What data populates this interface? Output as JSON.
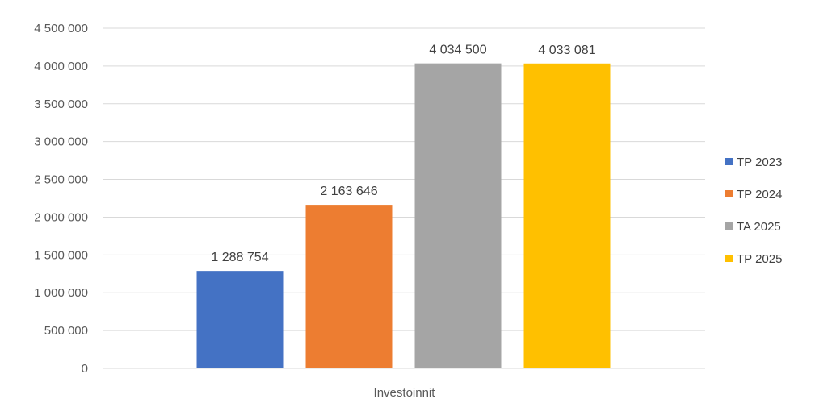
{
  "chart_data": {
    "type": "bar",
    "categories": [
      "Investoinnit"
    ],
    "series": [
      {
        "name": "TP 2023",
        "values": [
          1288754
        ],
        "label": "1 288 754",
        "color": "#4472c4"
      },
      {
        "name": "TP 2024",
        "values": [
          2163646
        ],
        "label": "2 163 646",
        "color": "#ed7d31"
      },
      {
        "name": "TA 2025",
        "values": [
          4034500
        ],
        "label": "4 034 500",
        "color": "#a5a5a5"
      },
      {
        "name": "TP 2025",
        "values": [
          4033081
        ],
        "label": "4 033 081",
        "color": "#ffc000"
      }
    ],
    "y_ticks": [
      {
        "value": 0,
        "label": "0"
      },
      {
        "value": 500000,
        "label": "500 000"
      },
      {
        "value": 1000000,
        "label": "1 000 000"
      },
      {
        "value": 1500000,
        "label": "1 500 000"
      },
      {
        "value": 2000000,
        "label": "2 000 000"
      },
      {
        "value": 2500000,
        "label": "2 500 000"
      },
      {
        "value": 3000000,
        "label": "3 000 000"
      },
      {
        "value": 3500000,
        "label": "3 500 000"
      },
      {
        "value": 4000000,
        "label": "4 000 000"
      },
      {
        "value": 4500000,
        "label": "4 500 000"
      }
    ],
    "ylim": [
      0,
      4500000
    ],
    "grid": true,
    "legend": "right",
    "gridline_color": "#d9d9d9"
  }
}
